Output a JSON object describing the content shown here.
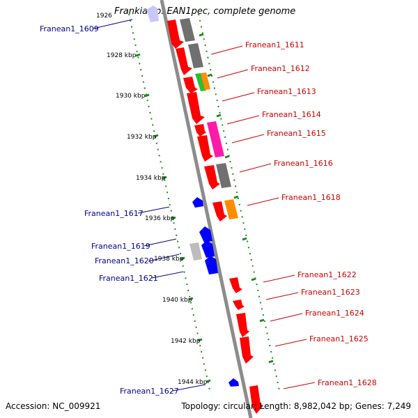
{
  "title": "Frankia sp. EAN1pec, complete genome",
  "footer": {
    "accession_label": "Accession: NC_009921",
    "summary": "Topology: circular; Length: 8,982,042 bp; Genes: 7,249"
  },
  "colors": {
    "backbone": "#8c8c8c",
    "tick": "#1a8a1a",
    "forward_label": "#cc0000",
    "reverse_label": "#00008b",
    "red": "#ff0000",
    "gray": "#707070",
    "light_gray": "#bdbdbd",
    "green": "#33bb33",
    "orange": "#ff8c00",
    "magenta": "#ff1aa8",
    "blue": "#0000ff",
    "lavender": "#c8c8ff"
  },
  "scale_labels": [
    "1926",
    "1928 kbp",
    "1930 kbp",
    "1932 kbp",
    "1934 kbp",
    "1936 kbp",
    "1938 kbp",
    "1940 kbp",
    "1942 kbp",
    "1944 kbp"
  ],
  "forward_genes": [
    {
      "label": "Franean1_1611",
      "color": "red"
    },
    {
      "label": "Franean1_1612",
      "color": "red"
    },
    {
      "label": "Franean1_1613",
      "color": "red"
    },
    {
      "label": "Franean1_1614",
      "color": "red"
    },
    {
      "label": "Franean1_1615",
      "color": "red"
    },
    {
      "label": "Franean1_1616",
      "color": "red"
    },
    {
      "label": "Franean1_1618",
      "color": "red"
    },
    {
      "label": "Franean1_1622",
      "color": "red"
    },
    {
      "label": "Franean1_1623",
      "color": "red"
    },
    {
      "label": "Franean1_1624",
      "color": "red"
    },
    {
      "label": "Franean1_1625",
      "color": "red"
    },
    {
      "label": "Franean1_1628",
      "color": "red"
    }
  ],
  "reverse_genes": [
    {
      "label": "Franean1_1609",
      "color": "lavender"
    },
    {
      "label": "Franean1_1617",
      "color": "blue"
    },
    {
      "label": "Franean1_1619",
      "color": "blue"
    },
    {
      "label": "Franean1_1620",
      "color": "blue"
    },
    {
      "label": "Franean1_1621",
      "color": "blue"
    },
    {
      "label": "Franean1_1627",
      "color": "blue"
    }
  ]
}
